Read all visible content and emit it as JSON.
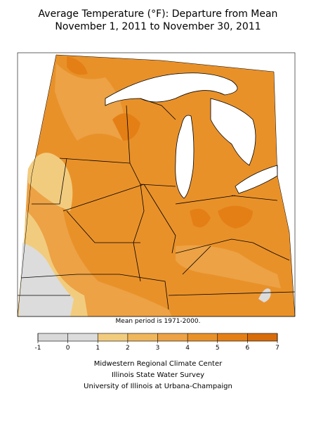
{
  "title": [
    "Average Temperature (°F): Departure from Mean",
    "November 1, 2011 to November 30, 2011"
  ],
  "note": "Mean period is 1971-2000.",
  "legend": {
    "ticks": [
      -1,
      0,
      1,
      2,
      3,
      4,
      5,
      6,
      7
    ],
    "colors": [
      "#d9d9d9",
      "#dcdcdc",
      "#f2cc7e",
      "#efb65c",
      "#eca245",
      "#e99129",
      "#e47f16",
      "#d86c0a"
    ]
  },
  "credits": [
    "Midwestern Regional Climate Center",
    "Illinois State Water Survey",
    "University of Illinois at Urbana-Champaign"
  ]
}
